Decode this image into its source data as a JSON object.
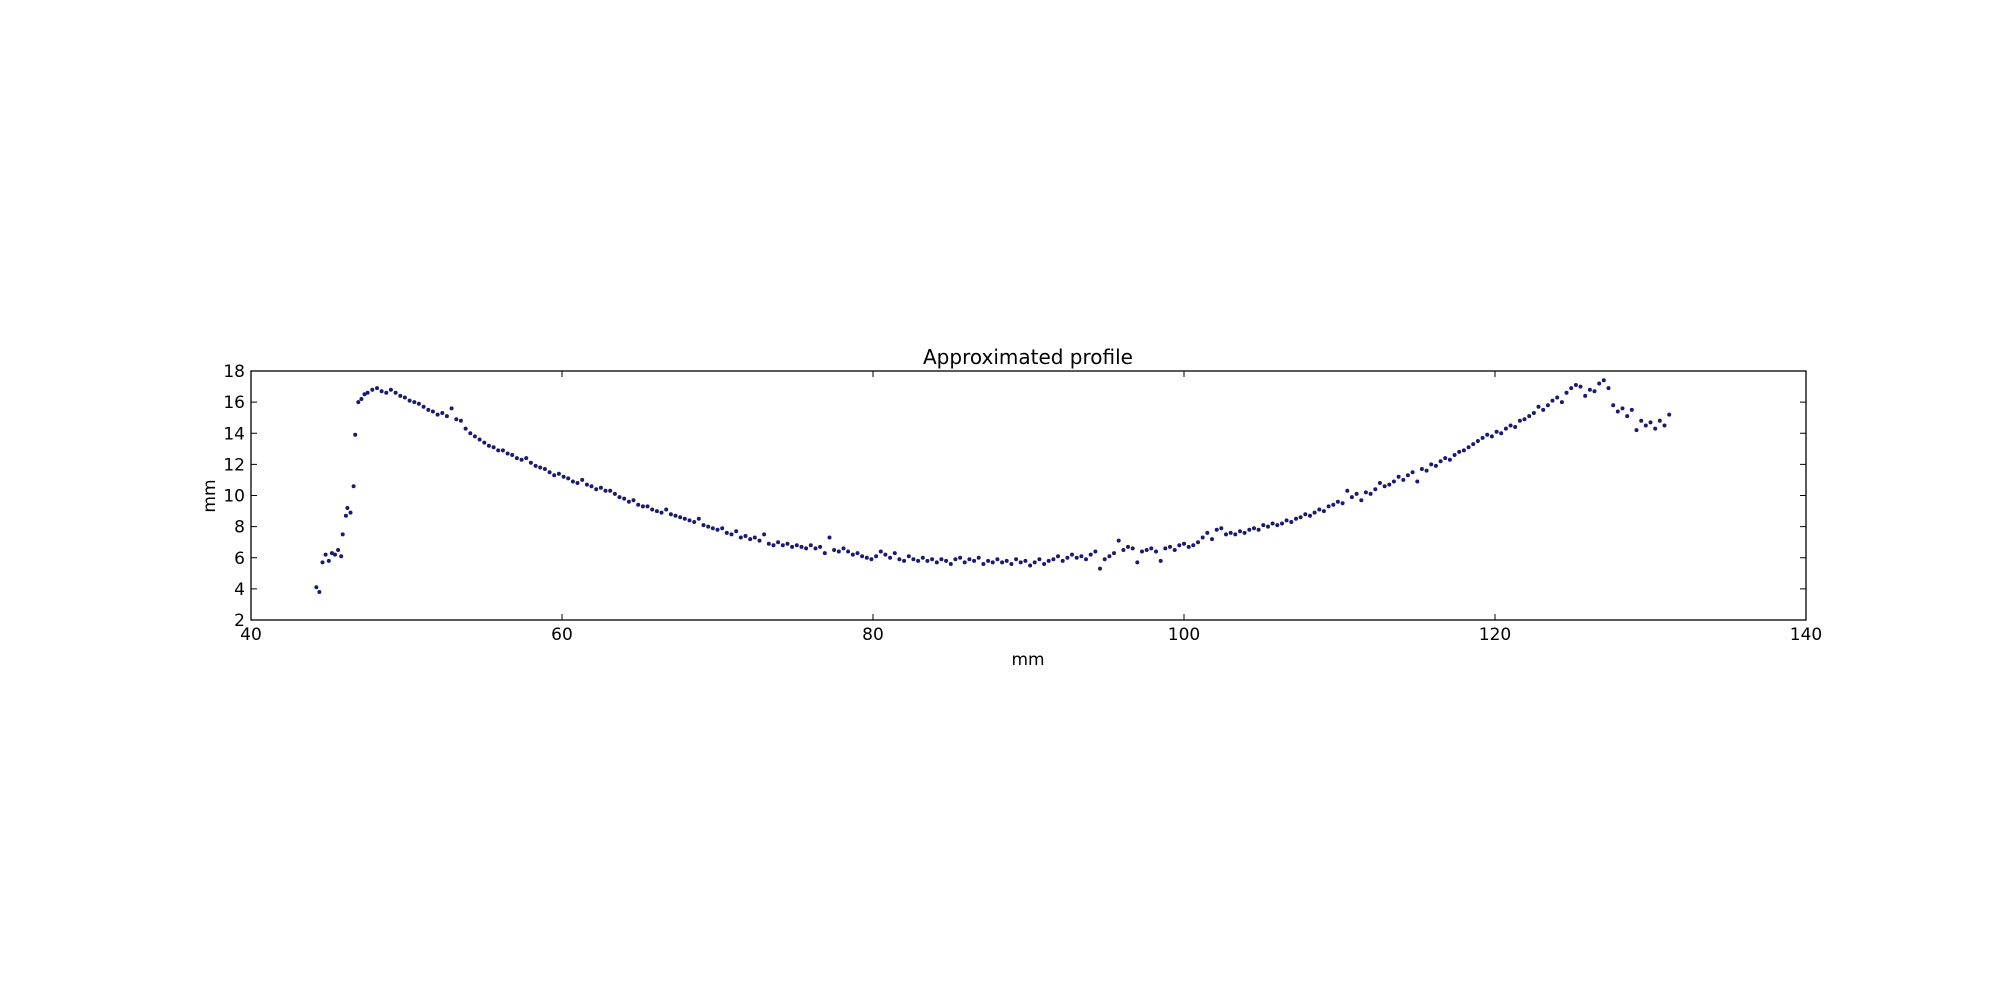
{
  "chart_data": {
    "type": "scatter",
    "title": "Approximated profile",
    "xlabel": "mm",
    "ylabel": "mm",
    "xlim": [
      40,
      140
    ],
    "ylim": [
      2,
      18
    ],
    "xticks": [
      "40",
      "60",
      "80",
      "100",
      "120",
      "140"
    ],
    "yticks": [
      "2",
      "4",
      "6",
      "8",
      "10",
      "12",
      "14",
      "16",
      "18"
    ],
    "grid": false,
    "legend": "none",
    "marker_color": "#1a1a6e",
    "series": [
      {
        "points": [
          [
            44.2,
            4.1
          ],
          [
            44.4,
            3.8
          ],
          [
            44.6,
            5.7
          ],
          [
            44.8,
            6.2
          ],
          [
            45.0,
            5.8
          ],
          [
            45.2,
            6.3
          ],
          [
            45.4,
            6.2
          ],
          [
            45.6,
            6.5
          ],
          [
            45.8,
            6.1
          ],
          [
            45.9,
            7.5
          ],
          [
            46.1,
            8.7
          ],
          [
            46.2,
            9.2
          ],
          [
            46.4,
            8.9
          ],
          [
            46.6,
            10.6
          ],
          [
            46.7,
            13.9
          ],
          [
            46.9,
            16.0
          ],
          [
            47.1,
            16.2
          ],
          [
            47.3,
            16.5
          ],
          [
            47.5,
            16.6
          ],
          [
            47.8,
            16.8
          ],
          [
            48.1,
            16.9
          ],
          [
            48.4,
            16.7
          ],
          [
            48.7,
            16.6
          ],
          [
            49.0,
            16.8
          ],
          [
            49.3,
            16.6
          ],
          [
            49.6,
            16.4
          ],
          [
            49.9,
            16.3
          ],
          [
            50.2,
            16.1
          ],
          [
            50.5,
            16.0
          ],
          [
            50.8,
            15.9
          ],
          [
            51.1,
            15.7
          ],
          [
            51.4,
            15.5
          ],
          [
            51.7,
            15.4
          ],
          [
            52.0,
            15.2
          ],
          [
            52.3,
            15.3
          ],
          [
            52.6,
            15.1
          ],
          [
            52.9,
            15.6
          ],
          [
            53.2,
            14.9
          ],
          [
            53.5,
            14.8
          ],
          [
            53.8,
            14.3
          ],
          [
            54.1,
            14.0
          ],
          [
            54.4,
            13.8
          ],
          [
            54.7,
            13.6
          ],
          [
            55.0,
            13.4
          ],
          [
            55.3,
            13.2
          ],
          [
            55.6,
            13.1
          ],
          [
            55.9,
            12.9
          ],
          [
            56.2,
            12.9
          ],
          [
            56.5,
            12.7
          ],
          [
            56.8,
            12.6
          ],
          [
            57.1,
            12.4
          ],
          [
            57.4,
            12.3
          ],
          [
            57.7,
            12.4
          ],
          [
            58.0,
            12.1
          ],
          [
            58.3,
            11.9
          ],
          [
            58.6,
            11.8
          ],
          [
            58.9,
            11.7
          ],
          [
            59.2,
            11.5
          ],
          [
            59.5,
            11.3
          ],
          [
            59.8,
            11.4
          ],
          [
            60.1,
            11.2
          ],
          [
            60.4,
            11.1
          ],
          [
            60.7,
            10.9
          ],
          [
            61.0,
            10.8
          ],
          [
            61.3,
            11.0
          ],
          [
            61.6,
            10.7
          ],
          [
            61.9,
            10.6
          ],
          [
            62.2,
            10.4
          ],
          [
            62.5,
            10.5
          ],
          [
            62.8,
            10.3
          ],
          [
            63.1,
            10.3
          ],
          [
            63.4,
            10.1
          ],
          [
            63.7,
            9.9
          ],
          [
            64.0,
            9.8
          ],
          [
            64.3,
            9.6
          ],
          [
            64.6,
            9.7
          ],
          [
            64.9,
            9.4
          ],
          [
            65.2,
            9.3
          ],
          [
            65.5,
            9.3
          ],
          [
            65.8,
            9.1
          ],
          [
            66.1,
            9.0
          ],
          [
            66.4,
            8.9
          ],
          [
            66.7,
            9.1
          ],
          [
            67.0,
            8.8
          ],
          [
            67.3,
            8.7
          ],
          [
            67.6,
            8.6
          ],
          [
            67.9,
            8.5
          ],
          [
            68.2,
            8.4
          ],
          [
            68.5,
            8.3
          ],
          [
            68.8,
            8.5
          ],
          [
            69.1,
            8.1
          ],
          [
            69.4,
            8.0
          ],
          [
            69.7,
            7.9
          ],
          [
            70.0,
            7.8
          ],
          [
            70.3,
            7.9
          ],
          [
            70.6,
            7.6
          ],
          [
            70.9,
            7.5
          ],
          [
            71.2,
            7.7
          ],
          [
            71.5,
            7.3
          ],
          [
            71.8,
            7.4
          ],
          [
            72.1,
            7.2
          ],
          [
            72.4,
            7.3
          ],
          [
            72.7,
            7.1
          ],
          [
            73.0,
            7.5
          ],
          [
            73.3,
            6.9
          ],
          [
            73.6,
            6.8
          ],
          [
            73.9,
            7.0
          ],
          [
            74.2,
            6.8
          ],
          [
            74.5,
            6.9
          ],
          [
            74.8,
            6.7
          ],
          [
            75.1,
            6.8
          ],
          [
            75.4,
            6.7
          ],
          [
            75.7,
            6.6
          ],
          [
            76.0,
            6.8
          ],
          [
            76.3,
            6.6
          ],
          [
            76.6,
            6.7
          ],
          [
            76.9,
            6.3
          ],
          [
            77.2,
            7.3
          ],
          [
            77.5,
            6.5
          ],
          [
            77.8,
            6.4
          ],
          [
            78.1,
            6.6
          ],
          [
            78.4,
            6.4
          ],
          [
            78.7,
            6.2
          ],
          [
            79.0,
            6.3
          ],
          [
            79.3,
            6.1
          ],
          [
            79.6,
            6.0
          ],
          [
            79.9,
            5.9
          ],
          [
            80.2,
            6.1
          ],
          [
            80.5,
            6.4
          ],
          [
            80.8,
            6.2
          ],
          [
            81.1,
            6.0
          ],
          [
            81.4,
            6.3
          ],
          [
            81.7,
            5.9
          ],
          [
            82.0,
            5.8
          ],
          [
            82.3,
            6.1
          ],
          [
            82.6,
            5.9
          ],
          [
            82.9,
            5.8
          ],
          [
            83.2,
            6.0
          ],
          [
            83.5,
            5.8
          ],
          [
            83.8,
            5.9
          ],
          [
            84.1,
            5.7
          ],
          [
            84.4,
            5.9
          ],
          [
            84.7,
            5.8
          ],
          [
            85.0,
            5.6
          ],
          [
            85.3,
            5.9
          ],
          [
            85.6,
            6.0
          ],
          [
            85.9,
            5.7
          ],
          [
            86.2,
            5.9
          ],
          [
            86.5,
            5.8
          ],
          [
            86.8,
            6.0
          ],
          [
            87.1,
            5.6
          ],
          [
            87.4,
            5.8
          ],
          [
            87.7,
            5.7
          ],
          [
            88.0,
            5.9
          ],
          [
            88.3,
            5.7
          ],
          [
            88.6,
            5.8
          ],
          [
            88.9,
            5.6
          ],
          [
            89.2,
            5.9
          ],
          [
            89.5,
            5.7
          ],
          [
            89.8,
            5.8
          ],
          [
            90.1,
            5.5
          ],
          [
            90.4,
            5.7
          ],
          [
            90.7,
            5.9
          ],
          [
            91.0,
            5.6
          ],
          [
            91.3,
            5.8
          ],
          [
            91.6,
            5.9
          ],
          [
            91.9,
            6.1
          ],
          [
            92.2,
            5.8
          ],
          [
            92.5,
            6.0
          ],
          [
            92.8,
            6.2
          ],
          [
            93.1,
            6.0
          ],
          [
            93.4,
            6.1
          ],
          [
            93.7,
            5.9
          ],
          [
            94.0,
            6.2
          ],
          [
            94.3,
            6.4
          ],
          [
            94.6,
            5.3
          ],
          [
            94.9,
            5.9
          ],
          [
            95.2,
            6.1
          ],
          [
            95.5,
            6.3
          ],
          [
            95.8,
            7.1
          ],
          [
            96.1,
            6.5
          ],
          [
            96.4,
            6.7
          ],
          [
            96.7,
            6.6
          ],
          [
            97.0,
            5.7
          ],
          [
            97.3,
            6.4
          ],
          [
            97.6,
            6.5
          ],
          [
            97.9,
            6.6
          ],
          [
            98.2,
            6.4
          ],
          [
            98.5,
            5.8
          ],
          [
            98.8,
            6.6
          ],
          [
            99.1,
            6.7
          ],
          [
            99.4,
            6.5
          ],
          [
            99.7,
            6.8
          ],
          [
            100.0,
            6.9
          ],
          [
            100.3,
            6.7
          ],
          [
            100.6,
            6.8
          ],
          [
            100.9,
            7.0
          ],
          [
            101.2,
            7.3
          ],
          [
            101.5,
            7.6
          ],
          [
            101.8,
            7.2
          ],
          [
            102.1,
            7.8
          ],
          [
            102.4,
            7.9
          ],
          [
            102.7,
            7.5
          ],
          [
            103.0,
            7.6
          ],
          [
            103.3,
            7.5
          ],
          [
            103.6,
            7.7
          ],
          [
            103.9,
            7.6
          ],
          [
            104.2,
            7.8
          ],
          [
            104.5,
            7.9
          ],
          [
            104.8,
            7.8
          ],
          [
            105.1,
            8.1
          ],
          [
            105.4,
            8.0
          ],
          [
            105.7,
            8.2
          ],
          [
            106.0,
            8.1
          ],
          [
            106.3,
            8.2
          ],
          [
            106.6,
            8.4
          ],
          [
            106.9,
            8.3
          ],
          [
            107.2,
            8.5
          ],
          [
            107.5,
            8.6
          ],
          [
            107.8,
            8.8
          ],
          [
            108.1,
            8.7
          ],
          [
            108.4,
            8.9
          ],
          [
            108.7,
            9.1
          ],
          [
            109.0,
            9.0
          ],
          [
            109.3,
            9.3
          ],
          [
            109.6,
            9.4
          ],
          [
            109.9,
            9.6
          ],
          [
            110.2,
            9.5
          ],
          [
            110.5,
            10.3
          ],
          [
            110.8,
            9.9
          ],
          [
            111.1,
            10.1
          ],
          [
            111.4,
            9.7
          ],
          [
            111.7,
            10.2
          ],
          [
            112.0,
            10.1
          ],
          [
            112.3,
            10.4
          ],
          [
            112.6,
            10.8
          ],
          [
            112.9,
            10.6
          ],
          [
            113.2,
            10.7
          ],
          [
            113.5,
            10.9
          ],
          [
            113.8,
            11.2
          ],
          [
            114.1,
            11.0
          ],
          [
            114.4,
            11.3
          ],
          [
            114.7,
            11.5
          ],
          [
            115.0,
            10.9
          ],
          [
            115.3,
            11.7
          ],
          [
            115.6,
            11.6
          ],
          [
            115.9,
            12.0
          ],
          [
            116.2,
            11.9
          ],
          [
            116.5,
            12.2
          ],
          [
            116.8,
            12.4
          ],
          [
            117.1,
            12.3
          ],
          [
            117.4,
            12.6
          ],
          [
            117.7,
            12.8
          ],
          [
            118.0,
            12.9
          ],
          [
            118.3,
            13.1
          ],
          [
            118.6,
            13.3
          ],
          [
            118.9,
            13.5
          ],
          [
            119.2,
            13.7
          ],
          [
            119.5,
            13.9
          ],
          [
            119.8,
            13.8
          ],
          [
            120.1,
            14.1
          ],
          [
            120.4,
            14.0
          ],
          [
            120.7,
            14.3
          ],
          [
            121.0,
            14.5
          ],
          [
            121.3,
            14.4
          ],
          [
            121.6,
            14.8
          ],
          [
            121.9,
            14.9
          ],
          [
            122.2,
            15.1
          ],
          [
            122.5,
            15.3
          ],
          [
            122.8,
            15.7
          ],
          [
            123.1,
            15.5
          ],
          [
            123.4,
            15.8
          ],
          [
            123.7,
            16.1
          ],
          [
            124.0,
            16.3
          ],
          [
            124.3,
            16.0
          ],
          [
            124.6,
            16.6
          ],
          [
            124.9,
            16.9
          ],
          [
            125.2,
            17.1
          ],
          [
            125.5,
            17.0
          ],
          [
            125.8,
            16.4
          ],
          [
            126.1,
            16.8
          ],
          [
            126.4,
            16.7
          ],
          [
            126.7,
            17.2
          ],
          [
            127.0,
            17.4
          ],
          [
            127.3,
            16.9
          ],
          [
            127.6,
            15.8
          ],
          [
            127.9,
            15.4
          ],
          [
            128.2,
            15.6
          ],
          [
            128.5,
            15.1
          ],
          [
            128.8,
            15.5
          ],
          [
            129.1,
            14.2
          ],
          [
            129.4,
            14.8
          ],
          [
            129.7,
            14.5
          ],
          [
            130.0,
            14.7
          ],
          [
            130.3,
            14.3
          ],
          [
            130.6,
            14.8
          ],
          [
            130.9,
            14.5
          ],
          [
            131.2,
            15.2
          ]
        ]
      }
    ]
  }
}
